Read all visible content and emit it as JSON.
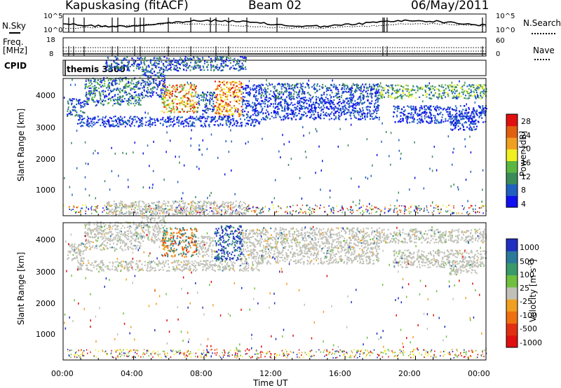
{
  "header": {
    "station": "Kapuskasing (fitACF)",
    "beam": "Beam 02",
    "date": "06/May/2011"
  },
  "top_panels": {
    "nsky_label": "N.Sky",
    "nsearch_label": "N.Search",
    "nsky_ticks": [
      "10^5",
      "10^0"
    ],
    "nsearch_ticks": [
      "10^5",
      "10^0"
    ],
    "freq_label": "Freq.",
    "freq_unit": "[MHz]",
    "freq_ticks": [
      "18",
      "8"
    ],
    "nave_label": "Nave",
    "nave_ticks": [
      "60",
      "0"
    ],
    "cpid_label": "CPID",
    "cpid_value": "themis 3300"
  },
  "chart_data": [
    {
      "type": "heatmap",
      "panel": "power",
      "ylabel": "Slant Range [km]",
      "xlabel": "",
      "x_ticks": [
        "00:00",
        "04:00",
        "08:00",
        "12:00",
        "16:00",
        "20:00",
        "00:00"
      ],
      "y_ticks": [
        "1000",
        "2000",
        "3000",
        "4000"
      ],
      "xlim_hours": [
        0,
        24
      ],
      "ylim_km": [
        180,
        4550
      ],
      "colorbar_label": "Power [dB]",
      "colorbar_ticks": [
        "4",
        "8",
        "12",
        "16",
        "20",
        "24",
        "28"
      ],
      "colorbar_colors": [
        "#1010f0",
        "#2060c0",
        "#3a8a5a",
        "#5ab840",
        "#f0f020",
        "#f0a020",
        "#e06010",
        "#e01010"
      ]
    },
    {
      "type": "heatmap",
      "panel": "velocity",
      "ylabel": "Slant Range [km]",
      "xlabel": "Time UT",
      "x_ticks": [
        "00:00",
        "04:00",
        "08:00",
        "12:00",
        "16:00",
        "20:00",
        "00:00"
      ],
      "y_ticks": [
        "1000",
        "2000",
        "3000",
        "4000"
      ],
      "xlim_hours": [
        0,
        24
      ],
      "ylim_km": [
        180,
        4550
      ],
      "colorbar_label": "Velocity [m s^-1]",
      "colorbar_ticks": [
        "1000",
        "500",
        "100",
        "25",
        "-25",
        "-100",
        "-500",
        "-1000"
      ],
      "colorbar_colors": [
        "#2030c0",
        "#2a7a9a",
        "#3a9a6a",
        "#70c040",
        "#c0c0b8",
        "#f0a020",
        "#f07010",
        "#e03010",
        "#e01010"
      ]
    }
  ]
}
